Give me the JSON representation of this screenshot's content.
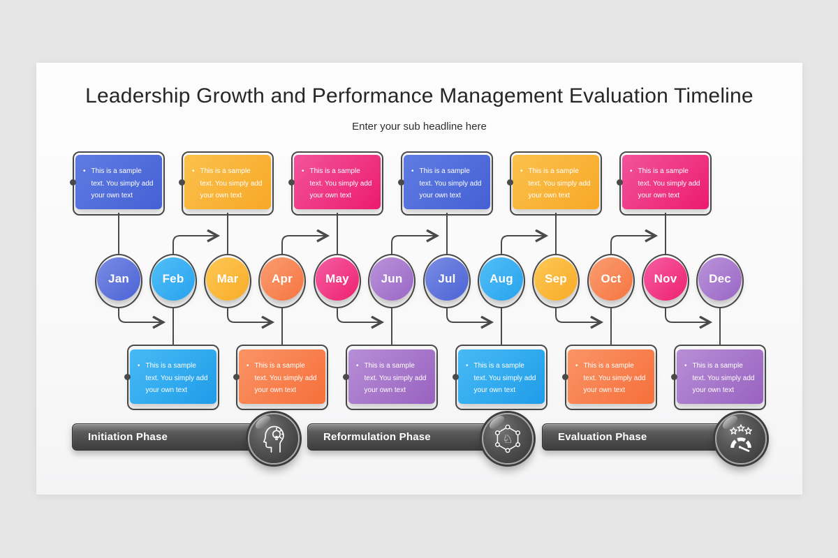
{
  "page": {
    "background": "#e7e6e7",
    "slide_background": "#fcfcfc"
  },
  "header": {
    "title": "Leadership Growth and Performance Management Evaluation Timeline",
    "subtitle": "Enter your sub headline here"
  },
  "note": {
    "bullet": "•",
    "text": "This is a sample text. You simply add your own text"
  },
  "connector_color": "#4a4a4a",
  "months": [
    {
      "label": "Jan",
      "side": "top",
      "circle": [
        "#7a8ce4",
        "#4c63d4"
      ],
      "box": [
        "#5f7ce2",
        "#4560d4"
      ]
    },
    {
      "label": "Feb",
      "side": "bottom",
      "circle": [
        "#52bef7",
        "#27a3ee"
      ],
      "box": [
        "#47baf5",
        "#1f9ce8"
      ]
    },
    {
      "label": "Mar",
      "side": "top",
      "circle": [
        "#fdc854",
        "#f8ab28"
      ],
      "box": [
        "#fbc14c",
        "#f7a827"
      ]
    },
    {
      "label": "Apr",
      "side": "bottom",
      "circle": [
        "#fa9d72",
        "#f67540"
      ],
      "box": [
        "#fa9466",
        "#f66f3a"
      ]
    },
    {
      "label": "May",
      "side": "top",
      "circle": [
        "#f55da2",
        "#ee2170"
      ],
      "box": [
        "#f2549b",
        "#ec1b6e"
      ]
    },
    {
      "label": "Jun",
      "side": "bottom",
      "circle": [
        "#ba93da",
        "#9a67c5"
      ],
      "box": [
        "#b78ed6",
        "#9862c0"
      ]
    },
    {
      "label": "Jul",
      "side": "top",
      "circle": [
        "#7a8ce4",
        "#4c63d4"
      ],
      "box": [
        "#5f7ce2",
        "#4560d4"
      ]
    },
    {
      "label": "Aug",
      "side": "bottom",
      "circle": [
        "#52bef7",
        "#27a3ee"
      ],
      "box": [
        "#47baf5",
        "#1f9ce8"
      ]
    },
    {
      "label": "Sep",
      "side": "top",
      "circle": [
        "#fdc854",
        "#f8ab28"
      ],
      "box": [
        "#fbc14c",
        "#f7a827"
      ]
    },
    {
      "label": "Oct",
      "side": "bottom",
      "circle": [
        "#fa9d72",
        "#f67540"
      ],
      "box": [
        "#fa9466",
        "#f66f3a"
      ]
    },
    {
      "label": "Nov",
      "side": "top",
      "circle": [
        "#f55da2",
        "#ee2170"
      ],
      "box": [
        "#f2549b",
        "#ec1b6e"
      ]
    },
    {
      "label": "Dec",
      "side": "bottom",
      "circle": [
        "#ba93da",
        "#9a67c5"
      ],
      "box": [
        "#b78ed6",
        "#9862c0"
      ]
    }
  ],
  "phases": [
    {
      "label": "Initiation Phase",
      "icon": "head-idea-icon"
    },
    {
      "label": "Reformulation Phase",
      "icon": "knight-network-icon"
    },
    {
      "label": "Evaluation Phase",
      "icon": "gauge-stars-icon"
    }
  ]
}
